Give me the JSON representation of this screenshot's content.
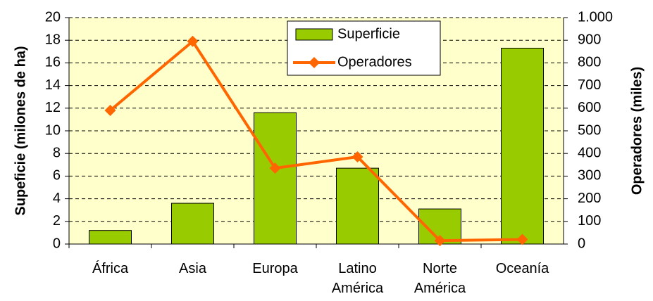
{
  "chart_data": {
    "type": "bar_line",
    "categories": [
      "África",
      "Asia",
      "Europa",
      "Latino América",
      "Norte América",
      "Oceanía"
    ],
    "series": [
      {
        "name": "Superficie",
        "type": "bar",
        "color": "#99cc00",
        "values": [
          1.2,
          3.6,
          11.6,
          6.7,
          3.1,
          17.3
        ]
      },
      {
        "name": "Operadores",
        "type": "line",
        "axis": "y2",
        "color": "#ff6600",
        "values": [
          590,
          895,
          335,
          385,
          15,
          20
        ]
      }
    ],
    "ylabel": "Supeficie (milones de ha)",
    "y2label": "Operadores (miles)",
    "ylim": [
      0,
      20
    ],
    "yticks": [
      0,
      2,
      4,
      6,
      8,
      10,
      12,
      14,
      16,
      18,
      20
    ],
    "y2lim": [
      0,
      1000
    ],
    "y2ticks": [
      0,
      100,
      200,
      300,
      400,
      500,
      600,
      700,
      800,
      900,
      {
        "value": 1000,
        "label": "1.000"
      }
    ],
    "grid": true,
    "legend": "top"
  }
}
